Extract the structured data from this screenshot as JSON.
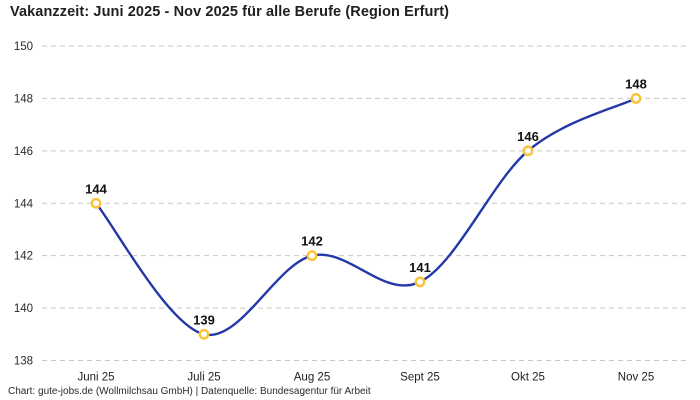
{
  "chart_data": {
    "type": "line",
    "title": "Vakanzzeit: Juni 2025 - Nov 2025 für alle Berufe (Region Erfurt)",
    "attribution": "Chart: gute-jobs.de (Wollmilchsau GmbH) | Datenquelle: Bundesagentur für Arbeit",
    "categories": [
      "Juni 25",
      "Juli 25",
      "Aug 25",
      "Sept 25",
      "Okt 25",
      "Nov 25"
    ],
    "values": [
      144,
      139,
      142,
      141,
      146,
      148
    ],
    "data_labels": [
      "144",
      "139",
      "142",
      "141",
      "146",
      "148"
    ],
    "yticks": [
      138,
      140,
      142,
      144,
      146,
      148,
      150
    ],
    "ylim": [
      138,
      150
    ],
    "xlabel": "",
    "ylabel": "",
    "grid": "dashed-horizontal",
    "legend": "none",
    "line_smooth": true,
    "colors": {
      "line": "#2438a8",
      "marker_stroke": "#fcc233",
      "marker_fill": "#ffffff",
      "gridline": "#c8c8c8",
      "background": "#ffffff"
    }
  }
}
